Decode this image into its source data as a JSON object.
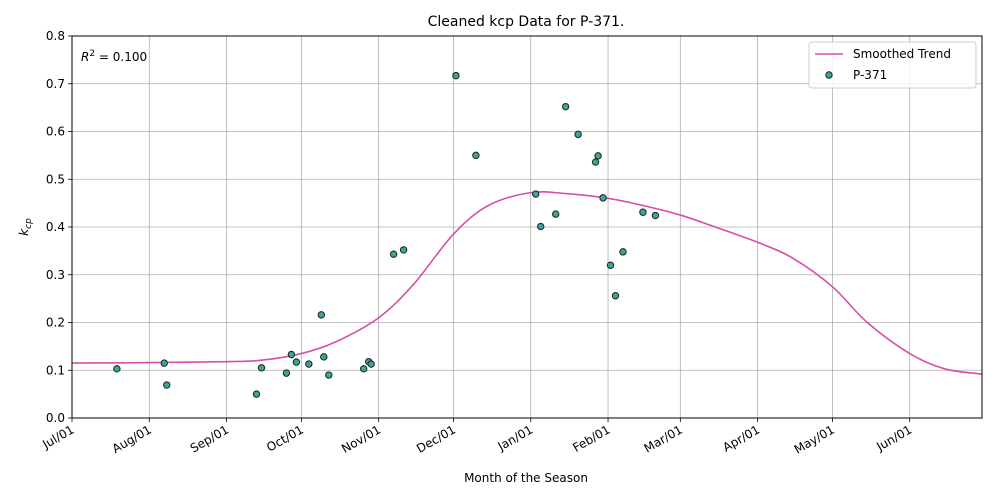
{
  "chart_data": {
    "type": "scatter",
    "title": "Cleaned kcp Data for P-371.",
    "xlabel": "Month of the Season",
    "ylabel": "k",
    "ylabel_sub": "cp",
    "x_axis_kind": "date",
    "xlim": [
      "2023-07-01",
      "2024-06-30"
    ],
    "ylim": [
      0,
      0.8
    ],
    "x_ticks": [
      {
        "date": "2023-07-01",
        "label": "Jul/01"
      },
      {
        "date": "2023-08-01",
        "label": "Aug/01"
      },
      {
        "date": "2023-09-01",
        "label": "Sep/01"
      },
      {
        "date": "2023-10-01",
        "label": "Oct/01"
      },
      {
        "date": "2023-11-01",
        "label": "Nov/01"
      },
      {
        "date": "2023-12-01",
        "label": "Dec/01"
      },
      {
        "date": "2024-01-01",
        "label": "Jan/01"
      },
      {
        "date": "2024-02-01",
        "label": "Feb/01"
      },
      {
        "date": "2024-03-01",
        "label": "Mar/01"
      },
      {
        "date": "2024-04-01",
        "label": "Apr/01"
      },
      {
        "date": "2024-05-01",
        "label": "May/01"
      },
      {
        "date": "2024-06-01",
        "label": "Jun/01"
      }
    ],
    "y_ticks": [
      "0.0",
      "0.1",
      "0.2",
      "0.3",
      "0.4",
      "0.5",
      "0.6",
      "0.7",
      "0.8"
    ],
    "y_tick_values": [
      0,
      0.1,
      0.2,
      0.3,
      0.4,
      0.5,
      0.6,
      0.7,
      0.8
    ],
    "grid": true,
    "legend_position": "top-right",
    "annotation": {
      "prefix": "R",
      "sup": "2",
      "text": " = 0.100"
    },
    "series": [
      {
        "name": "Smoothed Trend",
        "kind": "line",
        "color": "#d74fa6",
        "points": [
          {
            "x": "2023-07-01",
            "y": 0.115
          },
          {
            "x": "2023-08-01",
            "y": 0.116
          },
          {
            "x": "2023-09-01",
            "y": 0.118
          },
          {
            "x": "2023-09-15",
            "y": 0.121
          },
          {
            "x": "2023-10-01",
            "y": 0.135
          },
          {
            "x": "2023-10-15",
            "y": 0.16
          },
          {
            "x": "2023-11-01",
            "y": 0.21
          },
          {
            "x": "2023-11-15",
            "y": 0.28
          },
          {
            "x": "2023-12-01",
            "y": 0.385
          },
          {
            "x": "2023-12-15",
            "y": 0.445
          },
          {
            "x": "2024-01-01",
            "y": 0.472
          },
          {
            "x": "2024-01-15",
            "y": 0.47
          },
          {
            "x": "2024-02-01",
            "y": 0.46
          },
          {
            "x": "2024-02-15",
            "y": 0.445
          },
          {
            "x": "2024-03-01",
            "y": 0.425
          },
          {
            "x": "2024-03-15",
            "y": 0.4
          },
          {
            "x": "2024-04-01",
            "y": 0.368
          },
          {
            "x": "2024-04-15",
            "y": 0.335
          },
          {
            "x": "2024-05-01",
            "y": 0.275
          },
          {
            "x": "2024-05-15",
            "y": 0.2
          },
          {
            "x": "2024-06-01",
            "y": 0.135
          },
          {
            "x": "2024-06-15",
            "y": 0.103
          },
          {
            "x": "2024-06-30",
            "y": 0.092
          }
        ]
      },
      {
        "name": "P-371",
        "kind": "scatter",
        "color": "#3aa59a",
        "edge_color": "#222222",
        "points": [
          {
            "x": "2023-07-19",
            "y": 0.103
          },
          {
            "x": "2023-08-07",
            "y": 0.115
          },
          {
            "x": "2023-08-08",
            "y": 0.069
          },
          {
            "x": "2023-09-13",
            "y": 0.05
          },
          {
            "x": "2023-09-15",
            "y": 0.105
          },
          {
            "x": "2023-09-25",
            "y": 0.094
          },
          {
            "x": "2023-09-27",
            "y": 0.133
          },
          {
            "x": "2023-09-29",
            "y": 0.117
          },
          {
            "x": "2023-10-04",
            "y": 0.113
          },
          {
            "x": "2023-10-09",
            "y": 0.216
          },
          {
            "x": "2023-10-10",
            "y": 0.128
          },
          {
            "x": "2023-10-12",
            "y": 0.09
          },
          {
            "x": "2023-10-26",
            "y": 0.103
          },
          {
            "x": "2023-10-28",
            "y": 0.118
          },
          {
            "x": "2023-10-29",
            "y": 0.113
          },
          {
            "x": "2023-11-07",
            "y": 0.343
          },
          {
            "x": "2023-11-11",
            "y": 0.352
          },
          {
            "x": "2023-12-02",
            "y": 0.717
          },
          {
            "x": "2023-12-10",
            "y": 0.55
          },
          {
            "x": "2024-01-03",
            "y": 0.469
          },
          {
            "x": "2024-01-05",
            "y": 0.401
          },
          {
            "x": "2024-01-11",
            "y": 0.427
          },
          {
            "x": "2024-01-15",
            "y": 0.652
          },
          {
            "x": "2024-01-20",
            "y": 0.594
          },
          {
            "x": "2024-01-27",
            "y": 0.536
          },
          {
            "x": "2024-01-28",
            "y": 0.549
          },
          {
            "x": "2024-01-30",
            "y": 0.461
          },
          {
            "x": "2024-02-02",
            "y": 0.32
          },
          {
            "x": "2024-02-04",
            "y": 0.256
          },
          {
            "x": "2024-02-07",
            "y": 0.348
          },
          {
            "x": "2024-02-15",
            "y": 0.431
          },
          {
            "x": "2024-02-20",
            "y": 0.424
          }
        ]
      }
    ]
  }
}
